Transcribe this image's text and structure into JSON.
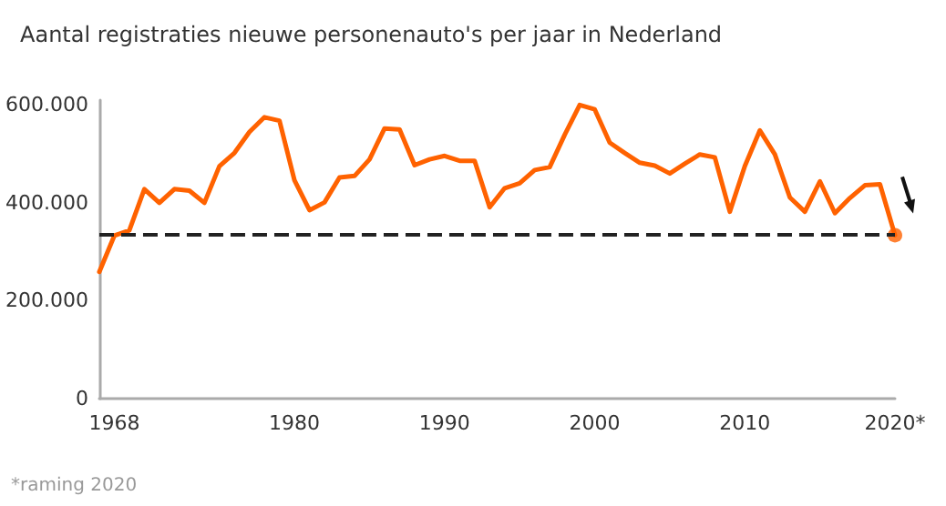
{
  "chart_data": {
    "type": "line",
    "title": "Aantal registraties nieuwe personenauto's per jaar in Nederland",
    "categories": [
      null,
      "1968",
      null,
      null,
      null,
      null,
      null,
      null,
      null,
      null,
      null,
      null,
      null,
      "1980",
      null,
      null,
      null,
      null,
      null,
      null,
      null,
      null,
      null,
      "1990",
      null,
      null,
      null,
      null,
      null,
      null,
      null,
      null,
      null,
      "2000",
      null,
      null,
      null,
      null,
      null,
      null,
      null,
      null,
      null,
      "2010",
      null,
      null,
      null,
      null,
      null,
      null,
      null,
      null,
      null,
      "2020*"
    ],
    "series": [
      {
        "color": "#ff6200",
        "marker": "none",
        "values": [
          259000,
          333000,
          344000,
          428000,
          400000,
          428000,
          425000,
          400000,
          475000,
          502000,
          545000,
          575000,
          568000,
          446000,
          385000,
          401000,
          452000,
          455000,
          489000,
          552000,
          550000,
          477000,
          489000,
          496000,
          486000,
          486000,
          391000,
          430000,
          440000,
          467000,
          473000,
          539000,
          600000,
          591000,
          523000,
          502000,
          482000,
          476000,
          460000,
          480000,
          499000,
          493000,
          382000,
          475000,
          548000,
          499000,
          411000,
          382000,
          444000,
          379000,
          410000,
          436000,
          438000,
          334000
        ]
      },
      {
        "type": "scatter",
        "color": "#ff6200",
        "marker": "circle",
        "x": [
          "2020*"
        ],
        "values": [
          334000
        ]
      }
    ],
    "ylim": [
      0,
      610000
    ],
    "yticks": [
      {
        "value": 0,
        "label": "0"
      },
      {
        "value": 200000,
        "label": "200.000"
      },
      {
        "value": 400000,
        "label": "400.000"
      },
      {
        "value": 600000,
        "label": "600.000"
      }
    ],
    "grid": false,
    "ref_lines": [
      {
        "axis": "y",
        "value": 335000,
        "color": "#222222",
        "line_style": "dashed"
      }
    ],
    "annotations": [
      "*raming 2020"
    ]
  }
}
